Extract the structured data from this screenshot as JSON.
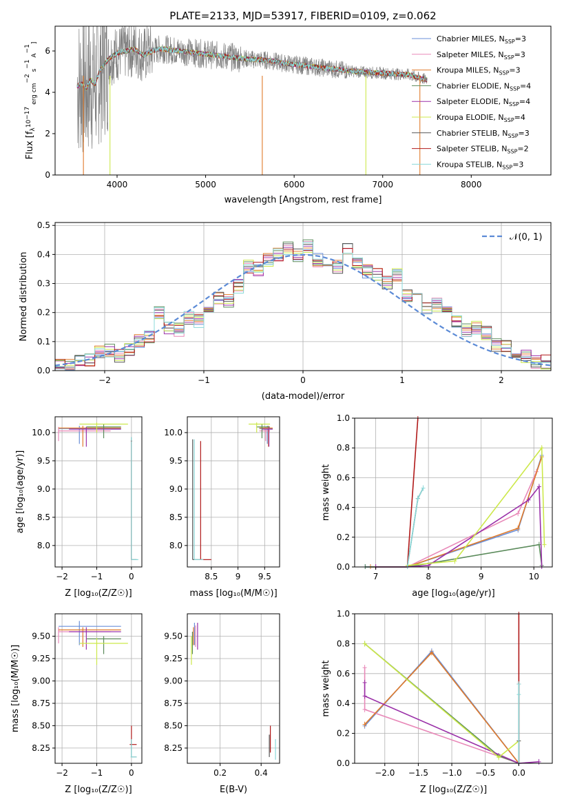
{
  "figure": {
    "title": "PLATE=2133, MJD=53917, FIBERID=0109, z=0.062"
  },
  "palette": {
    "Chabrier MILES": "#6a8fd8",
    "Salpeter MILES": "#e888b8",
    "Kroupa MILES": "#e07a2a",
    "Chabrier ELODIE": "#5a8a5a",
    "Salpeter ELODIE": "#9a30a8",
    "Kroupa ELODIE": "#cce84a",
    "Chabrier STELIB": "#555555",
    "Salpeter STELIB": "#b01818",
    "Kroupa STELIB": "#8ad8d8"
  },
  "chart_data": [
    {
      "id": "spectrum",
      "type": "line",
      "title": "PLATE=2133, MJD=53917, FIBERID=0109, z=0.062",
      "xlabel": "wavelength [Angstrom, rest frame]",
      "ylabel_parts": [
        "Flux [f",
        "λ",
        "10",
        "−17",
        " erg cm",
        "−2",
        " s",
        "−1",
        " A",
        "−1",
        "]"
      ],
      "xlim": [
        3300,
        8900
      ],
      "ylim": [
        0,
        7.2
      ],
      "xticks": [
        4000,
        5000,
        6000,
        7000,
        8000
      ],
      "yticks": [
        0,
        2,
        4,
        6
      ],
      "data_color": "#808080",
      "continuum": {
        "x": [
          3550,
          3600,
          3650,
          3700,
          3750,
          3800,
          3900,
          4000,
          4100,
          4200,
          4300,
          4400,
          4500,
          4700,
          4900,
          5100,
          5300,
          5500,
          5700,
          5900,
          6100,
          6300,
          6500,
          6700,
          6900,
          7100,
          7300,
          7400,
          7500
        ],
        "y": [
          4.3,
          4.4,
          4.2,
          4.6,
          4.4,
          5.0,
          5.6,
          5.9,
          6.0,
          6.1,
          5.8,
          6.0,
          6.1,
          6.0,
          5.9,
          5.8,
          5.7,
          5.6,
          5.55,
          5.4,
          5.3,
          5.2,
          5.1,
          5.0,
          4.95,
          4.9,
          4.85,
          4.7,
          4.6
        ]
      },
      "legend": [
        {
          "name": "Chabrier MILES",
          "nssp": "3"
        },
        {
          "name": "Salpeter MILES",
          "nssp": "3"
        },
        {
          "name": "Kroupa MILES",
          "nssp": "3"
        },
        {
          "name": "Chabrier ELODIE",
          "nssp": "4"
        },
        {
          "name": "Salpeter ELODIE",
          "nssp": "4"
        },
        {
          "name": "Kroupa ELODIE",
          "nssp": "4"
        },
        {
          "name": "Chabrier STELIB",
          "nssp": "3"
        },
        {
          "name": "Salpeter STELIB",
          "nssp": "2"
        },
        {
          "name": "Kroupa STELIB",
          "nssp": "3"
        }
      ],
      "nssp_sub": "SSP",
      "legend_placement": "top-right",
      "grid": false
    },
    {
      "id": "residuals",
      "type": "line",
      "xlabel": "(data-model)/error",
      "ylabel": "Normed distribution",
      "xlim": [
        -2.5,
        2.5
      ],
      "ylim": [
        0,
        0.51
      ],
      "xticks": [
        -2,
        -1,
        0,
        1,
        2
      ],
      "yticks": [
        0.0,
        0.1,
        0.2,
        0.3,
        0.4,
        0.5
      ],
      "legend_label": "𝒩(0, 1)",
      "legend_placement": "top-right",
      "grid": true,
      "hist_bins": [
        -2.5,
        -2.4,
        -2.3,
        -2.2,
        -2.1,
        -2.0,
        -1.9,
        -1.8,
        -1.7,
        -1.6,
        -1.5,
        -1.4,
        -1.3,
        -1.2,
        -1.1,
        -1.0,
        -0.9,
        -0.8,
        -0.7,
        -0.6,
        -0.5,
        -0.4,
        -0.3,
        -0.2,
        -0.1,
        0.0,
        0.1,
        0.2,
        0.3,
        0.4,
        0.5,
        0.6,
        0.7,
        0.8,
        0.9,
        1.0,
        1.1,
        1.2,
        1.3,
        1.4,
        1.5,
        1.6,
        1.7,
        1.8,
        1.9,
        2.0,
        2.1,
        2.2,
        2.3,
        2.4,
        2.5
      ],
      "hist_base": [
        0.02,
        0.02,
        0.03,
        0.04,
        0.06,
        0.07,
        0.05,
        0.07,
        0.1,
        0.12,
        0.2,
        0.15,
        0.14,
        0.18,
        0.17,
        0.2,
        0.25,
        0.24,
        0.29,
        0.36,
        0.35,
        0.38,
        0.4,
        0.42,
        0.4,
        0.43,
        0.38,
        0.38,
        0.36,
        0.42,
        0.37,
        0.34,
        0.33,
        0.3,
        0.33,
        0.26,
        0.26,
        0.22,
        0.23,
        0.2,
        0.17,
        0.14,
        0.15,
        0.13,
        0.09,
        0.08,
        0.06,
        0.05,
        0.03,
        0.03
      ]
    },
    {
      "id": "age_vs_Z",
      "type": "scatter",
      "xlabel": "Z [log₁₀(Z/Z☉)]",
      "ylabel": "age [log₁₀(age/yr)]",
      "xlim": [
        -2.2,
        0.3
      ],
      "ylim": [
        7.62,
        10.28
      ],
      "xticks": [
        -2,
        -1,
        0
      ],
      "yticks": [
        8.0,
        8.5,
        9.0,
        9.5,
        10.0
      ],
      "grid": true
    },
    {
      "id": "age_vs_mass",
      "type": "scatter",
      "xlabel": "mass [log₁₀(M/M☉)]",
      "xlim": [
        8.05,
        9.78
      ],
      "ylim": [
        7.62,
        10.28
      ],
      "xticks": [
        8.5,
        9.0,
        9.5
      ],
      "yticks": [
        8.0,
        8.5,
        9.0,
        9.5,
        10.0
      ],
      "grid": true
    },
    {
      "id": "massweight_vs_age",
      "type": "line",
      "xlabel": "age [log₁₀(age/yr)]",
      "ylabel": "mass weight",
      "xlim": [
        6.6,
        10.35
      ],
      "ylim": [
        0,
        1
      ],
      "xticks": [
        7,
        8,
        9,
        10
      ],
      "yticks": [
        0.0,
        0.2,
        0.4,
        0.6,
        0.8,
        1.0
      ],
      "grid": true,
      "series": [
        {
          "name": "Chabrier MILES",
          "x": [
            6.8,
            7.6,
            9.7,
            10.15
          ],
          "y": [
            0.0,
            0.0,
            0.25,
            0.75
          ]
        },
        {
          "name": "Salpeter MILES",
          "x": [
            7.0,
            7.6,
            9.7,
            10.05
          ],
          "y": [
            0.0,
            0.0,
            0.36,
            0.64
          ]
        },
        {
          "name": "Kroupa MILES",
          "x": [
            6.9,
            7.6,
            9.7,
            10.15
          ],
          "y": [
            0.0,
            0.0,
            0.26,
            0.74
          ]
        },
        {
          "name": "Chabrier ELODIE",
          "x": [
            6.8,
            7.6,
            10.1,
            10.15
          ],
          "y": [
            0.0,
            0.0,
            0.15,
            0.01
          ]
        },
        {
          "name": "Salpeter ELODIE",
          "x": [
            7.0,
            7.6,
            8.0,
            9.9,
            10.1,
            10.15
          ],
          "y": [
            0.0,
            0.0,
            0.01,
            0.45,
            0.54,
            0.0
          ]
        },
        {
          "name": "Kroupa ELODIE",
          "x": [
            7.6,
            8.5,
            10.15,
            10.2
          ],
          "y": [
            0.01,
            0.04,
            0.8,
            0.15
          ]
        },
        {
          "name": "Chabrier STELIB",
          "x": [
            7.6,
            7.8,
            7.9
          ],
          "y": [
            0.0,
            0.46,
            0.53
          ]
        },
        {
          "name": "Salpeter STELIB",
          "x": [
            7.6,
            7.8
          ],
          "y": [
            0.0,
            1.0
          ]
        },
        {
          "name": "Kroupa STELIB",
          "x": [
            7.6,
            7.8,
            7.9
          ],
          "y": [
            0.0,
            0.46,
            0.53
          ]
        }
      ]
    },
    {
      "id": "mass_vs_Z",
      "type": "scatter",
      "xlabel": "Z [log₁₀(Z/Z☉)]",
      "ylabel": "mass [log₁₀(M/M☉)]",
      "xlim": [
        -2.2,
        0.3
      ],
      "ylim": [
        8.08,
        9.75
      ],
      "xticks": [
        -2,
        -1,
        0
      ],
      "yticks": [
        8.25,
        8.5,
        8.75,
        9.0,
        9.25,
        9.5
      ],
      "grid": true
    },
    {
      "id": "mass_vs_ebv",
      "type": "scatter",
      "xlabel": "E(B-V)",
      "xlim": [
        0.04,
        0.49
      ],
      "ylim": [
        8.08,
        9.75
      ],
      "xticks": [
        0.2,
        0.4
      ],
      "yticks": [
        8.25,
        8.5,
        8.75,
        9.0,
        9.25,
        9.5
      ],
      "grid": true
    },
    {
      "id": "massweight_vs_Z",
      "type": "line",
      "xlabel": "Z [log₁₀(Z/Z☉)]",
      "ylabel": "mass weight",
      "xlim": [
        -2.45,
        0.5
      ],
      "ylim": [
        0,
        1
      ],
      "xticks": [
        -2.0,
        -1.5,
        -1.0,
        -0.5,
        0.0
      ],
      "yticks": [
        0.0,
        0.2,
        0.4,
        0.6,
        0.8,
        1.0
      ],
      "grid": true,
      "series": [
        {
          "name": "Chabrier MILES",
          "x": [
            -2.3,
            -1.3,
            0.0
          ],
          "y": [
            0.25,
            0.75,
            0.0
          ]
        },
        {
          "name": "Salpeter MILES",
          "x": [
            -2.3,
            -2.3,
            0.0
          ],
          "y": [
            0.64,
            0.36,
            0.0
          ]
        },
        {
          "name": "Kroupa MILES",
          "x": [
            -2.3,
            -1.3,
            0.0
          ],
          "y": [
            0.26,
            0.74,
            0.0
          ]
        },
        {
          "name": "Chabrier ELODIE",
          "x": [
            -2.3,
            -0.3,
            0.0
          ],
          "y": [
            0.8,
            0.05,
            0.0
          ]
        },
        {
          "name": "Salpeter ELODIE",
          "x": [
            -2.3,
            -2.3,
            0.0,
            0.3
          ],
          "y": [
            0.54,
            0.45,
            0.0,
            0.01
          ]
        },
        {
          "name": "Kroupa ELODIE",
          "x": [
            -2.3,
            -0.3,
            0.0
          ],
          "y": [
            0.8,
            0.04,
            0.15
          ]
        },
        {
          "name": "Chabrier STELIB",
          "x": [
            0.0,
            0.0,
            0.0
          ],
          "y": [
            0.0,
            0.15,
            0.53
          ]
        },
        {
          "name": "Salpeter STELIB",
          "x": [
            0.0,
            0.0
          ],
          "y": [
            0.0,
            1.0
          ]
        },
        {
          "name": "Kroupa STELIB",
          "x": [
            0.0,
            0.0,
            0.0
          ],
          "y": [
            0.0,
            0.46,
            0.53
          ]
        }
      ]
    }
  ]
}
